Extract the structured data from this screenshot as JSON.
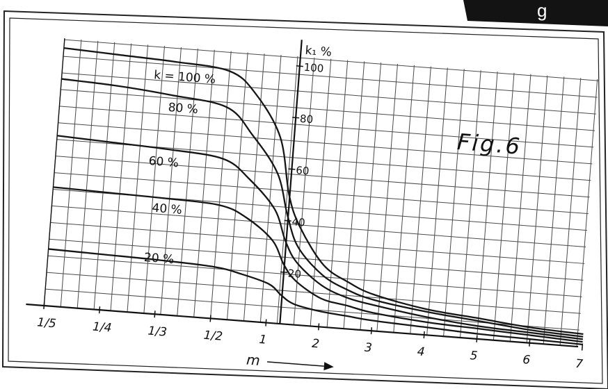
{
  "header_tab": "g",
  "chart_data": {
    "type": "line",
    "title": "Fig.6",
    "xlabel": "m",
    "ylabel": "k₁ %",
    "x_scale": "reciprocal-left / linear-right",
    "x_ticks": [
      "1/5",
      "1/4",
      "1/3",
      "1/2",
      "1",
      "2",
      "3",
      "4",
      "5",
      "6",
      "7"
    ],
    "x_tick_values": [
      0.2,
      0.25,
      0.333,
      0.5,
      1,
      2,
      3,
      4,
      5,
      6,
      7
    ],
    "y_ticks": [
      "20",
      "40",
      "60",
      "80",
      "100"
    ],
    "ylim": [
      0,
      100
    ],
    "grid": true,
    "series": [
      {
        "name": "k = 100 %",
        "label": "k = 100 %",
        "x": [
          0.2,
          0.25,
          0.333,
          0.5,
          0.75,
          1,
          1.25,
          1.5,
          2,
          2.5,
          3,
          4,
          5,
          6,
          7
        ],
        "y": [
          100,
          99,
          98,
          96,
          88,
          72,
          50,
          38,
          24,
          18,
          14,
          10,
          8,
          6,
          5
        ]
      },
      {
        "name": "80 %",
        "label": "80 %",
        "x": [
          0.2,
          0.25,
          0.333,
          0.5,
          0.75,
          1,
          1.25,
          1.5,
          2,
          2.5,
          3,
          4,
          5,
          6,
          7
        ],
        "y": [
          88,
          87,
          85,
          82,
          72,
          58,
          42,
          30,
          20,
          15,
          12,
          9,
          7,
          5,
          4
        ]
      },
      {
        "name": "60 %",
        "label": "60 %",
        "x": [
          0.2,
          0.25,
          0.333,
          0.5,
          0.75,
          1,
          1.25,
          1.5,
          2,
          2.5,
          3,
          4,
          5,
          6,
          7
        ],
        "y": [
          66,
          65,
          64,
          62,
          55,
          44,
          32,
          24,
          16,
          12,
          10,
          7,
          5,
          4,
          3
        ]
      },
      {
        "name": "40 %",
        "label": "40 %",
        "x": [
          0.2,
          0.25,
          0.333,
          0.5,
          0.75,
          1,
          1.25,
          1.5,
          2,
          2.5,
          3,
          4,
          5,
          6,
          7
        ],
        "y": [
          46,
          45.5,
          45,
          44,
          40,
          32,
          23,
          17,
          11,
          9,
          7,
          5,
          4,
          3,
          2
        ]
      },
      {
        "name": "20 %",
        "label": "20 %",
        "x": [
          0.2,
          0.25,
          0.333,
          0.5,
          0.75,
          1,
          1.25,
          1.5,
          2,
          2.5,
          3,
          4,
          5,
          6,
          7
        ],
        "y": [
          22,
          21.5,
          21,
          20,
          18,
          15,
          11,
          8,
          6,
          5,
          4,
          3,
          2,
          1.5,
          1
        ]
      }
    ]
  }
}
